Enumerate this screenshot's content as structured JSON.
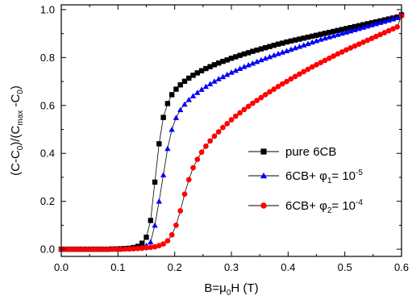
{
  "chart_data": {
    "type": "scatter",
    "title": "",
    "xlabel": {
      "main": "B=μ",
      "sub": "0",
      "tail": "H (T)"
    },
    "ylabel": {
      "p1": "(C-C",
      "s1": "0",
      "p2": ")/(C",
      "s2": "max",
      "p3": " -C",
      "s3": "0",
      "p4": ")"
    },
    "xlim": [
      0.0,
      0.6
    ],
    "ylim": [
      -0.03,
      1.02
    ],
    "xticks": [
      "0.0",
      "0.1",
      "0.2",
      "0.3",
      "0.4",
      "0.5",
      "0.6"
    ],
    "yticks": [
      "0.0",
      "0.2",
      "0.4",
      "0.6",
      "0.8",
      "1.0"
    ],
    "xtick_values": [
      0.0,
      0.1,
      0.2,
      0.3,
      0.4,
      0.5,
      0.6
    ],
    "ytick_values": [
      0.0,
      0.2,
      0.4,
      0.6,
      0.8,
      1.0
    ],
    "grid": false,
    "legend_placement": "center-right",
    "series": [
      {
        "name": "pure 6CB",
        "legend": {
          "base": "pure 6CB",
          "sym": "",
          "sub": "",
          "eq": "",
          "sup": ""
        },
        "marker": "square",
        "color": "#000000",
        "x_start": 0.0,
        "x_step": 0.0075,
        "y": [
          0.0,
          0.0,
          0.0,
          0.0,
          0.0,
          0.0,
          0.0,
          0.0,
          0.0,
          0.0,
          0.0,
          0.0,
          0.001,
          0.001,
          0.002,
          0.003,
          0.004,
          0.007,
          0.012,
          0.025,
          0.05,
          0.12,
          0.28,
          0.44,
          0.55,
          0.608,
          0.645,
          0.668,
          0.686,
          0.701,
          0.714,
          0.726,
          0.736,
          0.745,
          0.754,
          0.762,
          0.77,
          0.777,
          0.784,
          0.79,
          0.797,
          0.803,
          0.809,
          0.815,
          0.82,
          0.826,
          0.831,
          0.836,
          0.841,
          0.846,
          0.851,
          0.856,
          0.86,
          0.865,
          0.869,
          0.873,
          0.877,
          0.881,
          0.885,
          0.889,
          0.893,
          0.897,
          0.901,
          0.905,
          0.909,
          0.913,
          0.917,
          0.921,
          0.925,
          0.929,
          0.933,
          0.937,
          0.941,
          0.945,
          0.949,
          0.953,
          0.957,
          0.961,
          0.965,
          0.969,
          0.978
        ]
      },
      {
        "name": "6CB+ φ1= 10-5",
        "legend": {
          "base": "6CB+ ",
          "sym": "φ",
          "sub": "1",
          "eq": "= 10",
          "sup": "-5"
        },
        "marker": "triangle",
        "color": "#0000ff",
        "x_start": 0.0,
        "x_step": 0.0075,
        "y": [
          0.0,
          0.0,
          0.0,
          0.0,
          0.0,
          0.0,
          0.0,
          0.0,
          0.0,
          0.0,
          0.0,
          0.0,
          0.0,
          0.001,
          0.001,
          0.002,
          0.003,
          0.004,
          0.006,
          0.01,
          0.015,
          0.03,
          0.1,
          0.2,
          0.31,
          0.42,
          0.5,
          0.549,
          0.582,
          0.605,
          0.624,
          0.64,
          0.654,
          0.667,
          0.679,
          0.69,
          0.701,
          0.711,
          0.72,
          0.729,
          0.738,
          0.746,
          0.754,
          0.762,
          0.769,
          0.776,
          0.783,
          0.79,
          0.797,
          0.803,
          0.81,
          0.816,
          0.822,
          0.828,
          0.834,
          0.84,
          0.846,
          0.852,
          0.858,
          0.864,
          0.87,
          0.876,
          0.881,
          0.886,
          0.891,
          0.896,
          0.901,
          0.906,
          0.911,
          0.916,
          0.921,
          0.926,
          0.931,
          0.936,
          0.941,
          0.946,
          0.951,
          0.956,
          0.961,
          0.966,
          0.985
        ]
      },
      {
        "name": "6CB+ φ2= 10-4",
        "legend": {
          "base": "6CB+ ",
          "sym": "φ",
          "sub": "2",
          "eq": "= 10",
          "sup": "-4"
        },
        "marker": "circle",
        "color": "#ff0000",
        "x_start": 0.0,
        "x_step": 0.0075,
        "y": [
          0.0,
          0.0,
          0.0,
          0.0,
          0.0,
          0.0,
          0.0,
          0.0,
          0.0,
          0.0,
          0.0,
          0.0,
          0.0,
          0.0,
          0.0,
          0.001,
          0.001,
          0.002,
          0.003,
          0.004,
          0.006,
          0.008,
          0.01,
          0.015,
          0.022,
          0.035,
          0.06,
          0.1,
          0.16,
          0.23,
          0.29,
          0.34,
          0.375,
          0.405,
          0.43,
          0.452,
          0.472,
          0.49,
          0.508,
          0.524,
          0.54,
          0.555,
          0.569,
          0.583,
          0.596,
          0.609,
          0.621,
          0.633,
          0.645,
          0.657,
          0.668,
          0.679,
          0.69,
          0.7,
          0.711,
          0.721,
          0.731,
          0.741,
          0.751,
          0.761,
          0.77,
          0.779,
          0.788,
          0.797,
          0.806,
          0.815,
          0.823,
          0.832,
          0.84,
          0.848,
          0.856,
          0.864,
          0.872,
          0.88,
          0.888,
          0.896,
          0.904,
          0.912,
          0.92,
          0.928,
          0.975
        ]
      }
    ]
  }
}
